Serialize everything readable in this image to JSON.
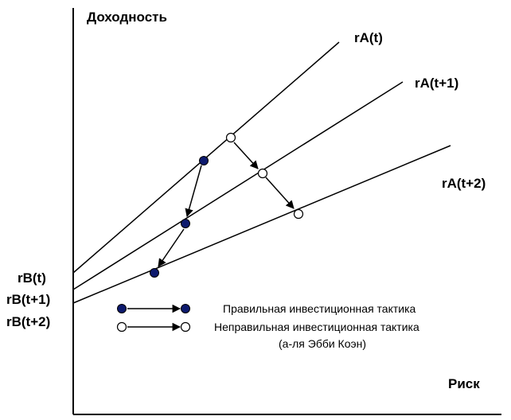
{
  "axes": {
    "y_title": "Доходность",
    "x_title": "Риск"
  },
  "lines": [
    {
      "label": "rA(t)",
      "intercept_label": "rB(t)"
    },
    {
      "label": "rA(t+1)",
      "intercept_label": "rB(t+1)"
    },
    {
      "label": "rA(t+2)",
      "intercept_label": "rB(t+2)"
    }
  ],
  "legend": {
    "correct": "Правильная инвестиционная тактика",
    "incorrect": "Неправильная инвестиционная тактика",
    "note": "(а-ля Эбби Коэн)"
  },
  "colors": {
    "correct_dot": "#0d1a6e",
    "incorrect_dot": "#ffffff",
    "ink": "#000000"
  }
}
